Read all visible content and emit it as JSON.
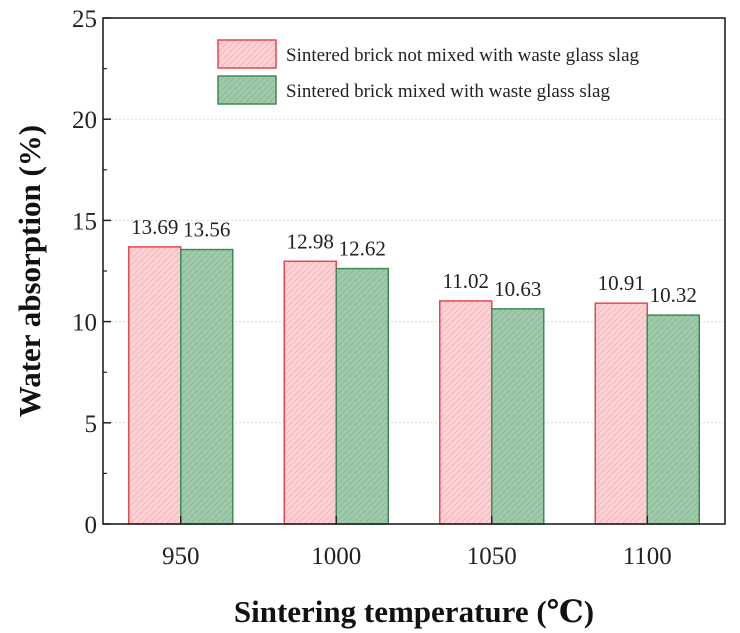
{
  "chart_data": {
    "type": "bar",
    "title": "",
    "xlabel": "Sintering temperature (℃)",
    "ylabel": "Water absorption (%)",
    "categories": [
      "950",
      "1000",
      "1050",
      "1100"
    ],
    "ylim": [
      0,
      25
    ],
    "yticks": [
      0,
      5,
      10,
      15,
      20,
      25
    ],
    "ytick_labels": [
      "0",
      "5",
      "10",
      "15",
      "20",
      "25"
    ],
    "grid": true,
    "legend_position": "top-right",
    "series": [
      {
        "name": "Sintered brick not mixed with waste glass slag",
        "values": [
          13.69,
          12.98,
          11.02,
          10.91
        ],
        "labels": [
          "13.69",
          "12.98",
          "11.02",
          "10.91"
        ],
        "fill": "#fdd0d3",
        "stroke": "#e8474f"
      },
      {
        "name": "Sintered brick mixed with waste glass slag",
        "values": [
          13.56,
          12.62,
          10.63,
          10.32
        ],
        "labels": [
          "13.56",
          "12.62",
          "10.63",
          "10.32"
        ],
        "fill": "#9fcaaa",
        "stroke": "#3e8a57"
      }
    ]
  }
}
